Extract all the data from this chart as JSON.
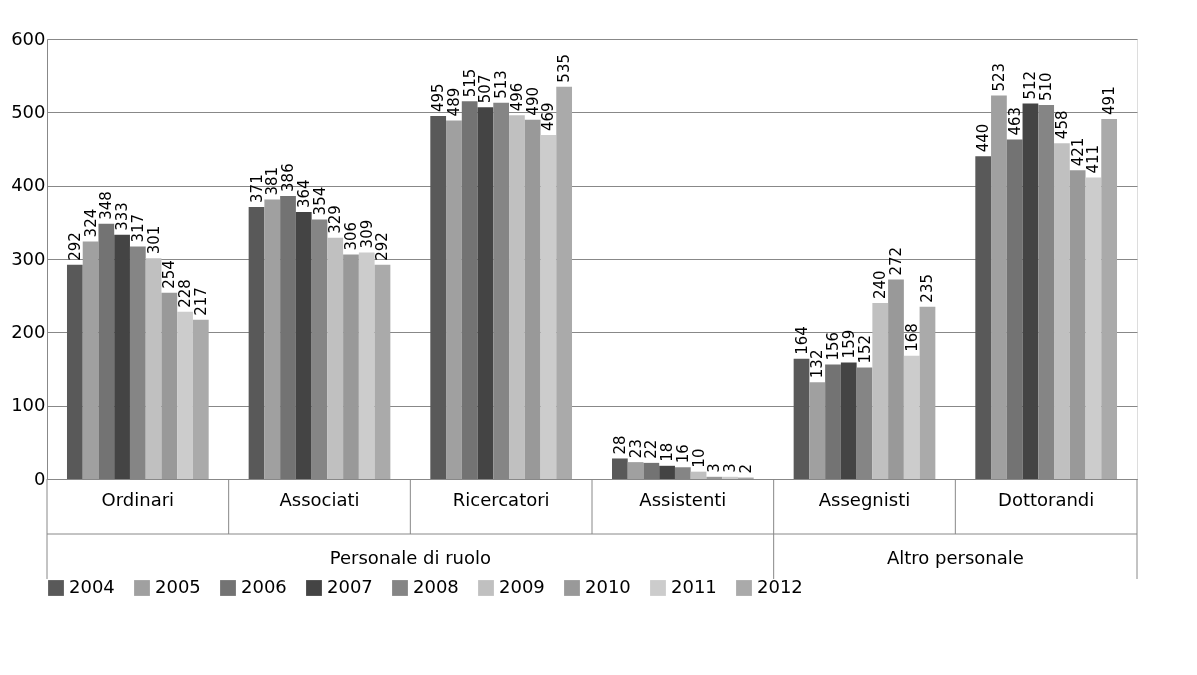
{
  "chart_data": {
    "type": "bar",
    "categories": [
      "Ordinari",
      "Associati",
      "Ricercatori",
      "Assistenti",
      "Assegnisti",
      "Dottorandi"
    ],
    "series": [
      {
        "name": "2004",
        "color": "#595959",
        "values": [
          292,
          371,
          495,
          28,
          164,
          440
        ]
      },
      {
        "name": "2005",
        "color": "#a0a0a0",
        "values": [
          324,
          381,
          489,
          23,
          132,
          523
        ]
      },
      {
        "name": "2006",
        "color": "#737373",
        "values": [
          348,
          386,
          515,
          22,
          156,
          463
        ]
      },
      {
        "name": "2007",
        "color": "#444444",
        "values": [
          333,
          364,
          507,
          18,
          159,
          512
        ]
      },
      {
        "name": "2008",
        "color": "#858585",
        "values": [
          317,
          354,
          513,
          16,
          152,
          510
        ]
      },
      {
        "name": "2009",
        "color": "#c0c0c0",
        "values": [
          301,
          329,
          496,
          10,
          240,
          458
        ]
      },
      {
        "name": "2010",
        "color": "#999999",
        "values": [
          254,
          306,
          490,
          3,
          272,
          421
        ]
      },
      {
        "name": "2011",
        "color": "#cccccc",
        "values": [
          228,
          309,
          469,
          3,
          168,
          411
        ]
      },
      {
        "name": "2012",
        "color": "#aaaaaa",
        "values": [
          217,
          292,
          535,
          2,
          235,
          491
        ]
      }
    ],
    "annotations": [
      "Personale di ruolo",
      "Altro personale"
    ],
    "ylim": [
      0,
      600
    ],
    "yticks": [
      0,
      100,
      200,
      300,
      400,
      500,
      600
    ],
    "grid": "y",
    "legend": "bottom",
    "data_labels": true
  }
}
